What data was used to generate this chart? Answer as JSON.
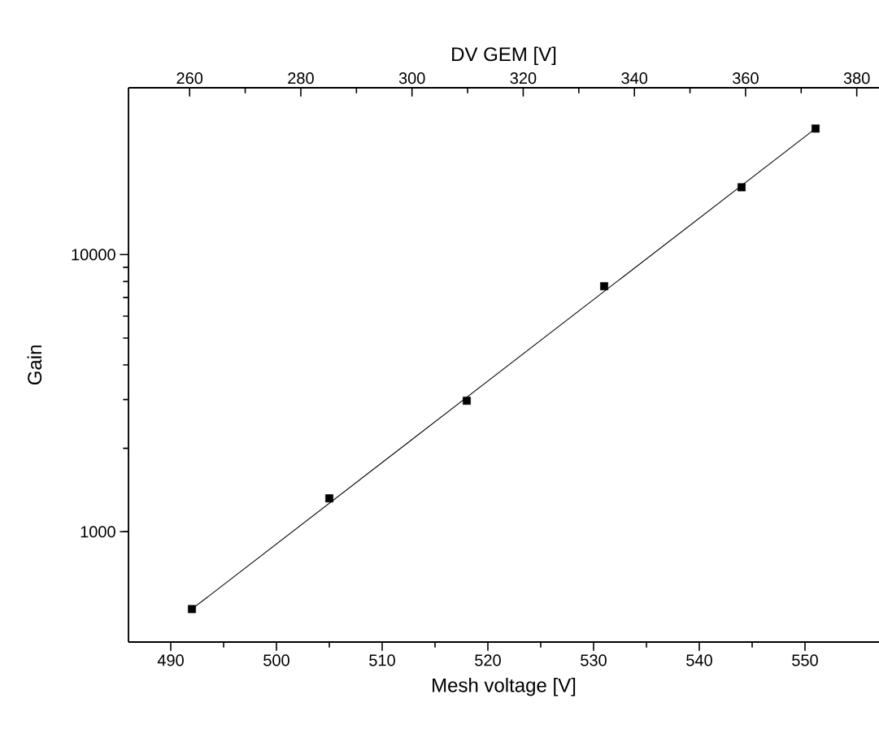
{
  "chart_data": {
    "type": "scatter",
    "xlabel": "Mesh voltage [V]",
    "ylabel": "Gain",
    "x2label": "DV GEM [V]",
    "xlim": [
      486,
      557
    ],
    "xticks": [
      490,
      500,
      510,
      520,
      530,
      540,
      550
    ],
    "x2lim": [
      249,
      384
    ],
    "x2ticks": [
      260,
      280,
      300,
      320,
      340,
      360,
      380
    ],
    "ylim": [
      400,
      40000
    ],
    "yticks": [
      1000,
      10000
    ],
    "log": "y",
    "grid": false,
    "series": [
      {
        "color": "#000000",
        "marker": "square",
        "x": [
          492,
          505,
          518,
          531,
          544,
          551
        ],
        "values": [
          526,
          1320,
          2970,
          7690,
          17500,
          28500
        ]
      },
      {
        "type": "line",
        "color": "#000000",
        "marker": "none",
        "line_style": "solid",
        "x": [
          492,
          551
        ],
        "values": [
          526,
          28500
        ]
      }
    ]
  }
}
